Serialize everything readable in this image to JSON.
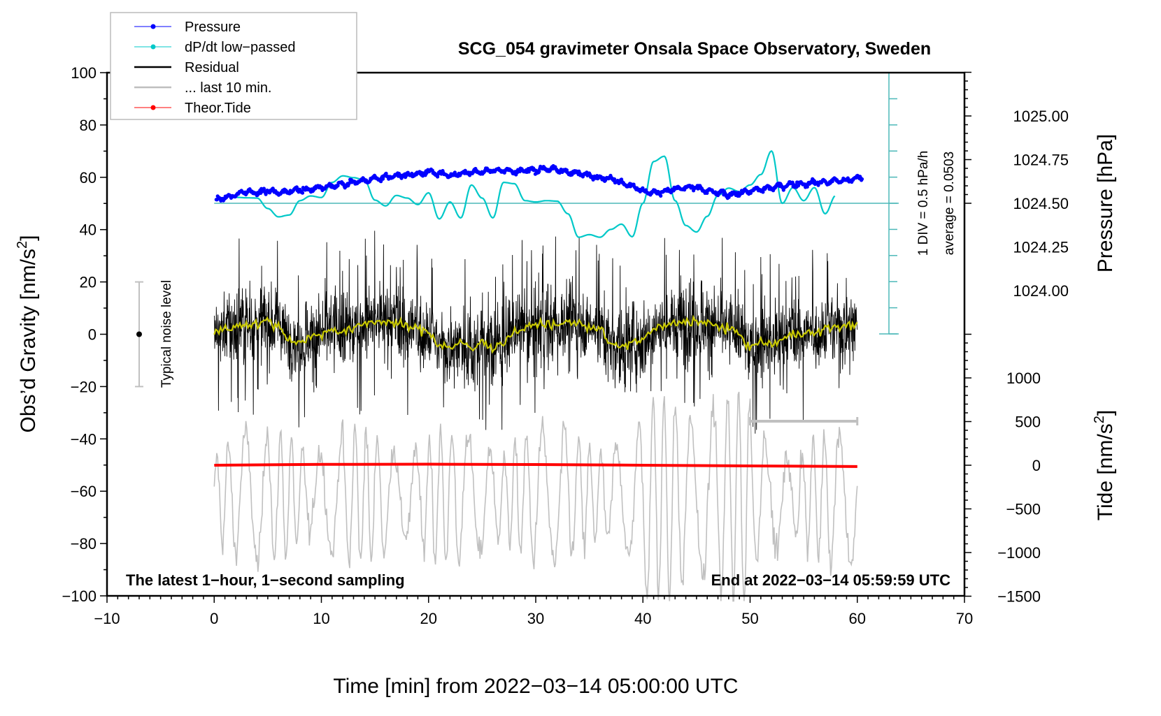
{
  "chart_data": {
    "type": "line",
    "title": "SCG_054 gravimeter Onsala Space Observatory, Sweden",
    "xlabel": "Time [min] from 2022−03−14 05:00:00 UTC",
    "ylabel_left": "Obs’d Gravity [nm/s²]",
    "ylabel_left_base": "Obs’d Gravity [nm/s",
    "ylabel_left_sup": "2",
    "ylabel_left_end": "]",
    "ylabel_right_pressure": "Pressure [hPa]",
    "ylabel_right_tide_base": "Tide [nm/s",
    "ylabel_right_tide_sup": "2",
    "ylabel_right_tide_end": "]",
    "xlim": [
      -10,
      70
    ],
    "ylim_left": [
      -100,
      100
    ],
    "ylim_pressure": [
      1023.75,
      1025.25
    ],
    "ylim_tide": [
      -1500,
      1500
    ],
    "x_ticks": [
      "−10",
      "0",
      "10",
      "20",
      "30",
      "40",
      "50",
      "60",
      "70"
    ],
    "x_tick_values": [
      -10,
      0,
      10,
      20,
      30,
      40,
      50,
      60,
      70
    ],
    "y_left_ticks": [
      "100",
      "80",
      "60",
      "40",
      "20",
      "0",
      "−20",
      "−40",
      "−60",
      "−80",
      "−100"
    ],
    "y_left_tick_values": [
      100,
      80,
      60,
      40,
      20,
      0,
      -20,
      -40,
      -60,
      -80,
      -100
    ],
    "pressure_ticks": [
      "1025.00",
      "1024.75",
      "1024.50",
      "1024.25",
      "1024.00"
    ],
    "pressure_tick_values": [
      1025.0,
      1024.75,
      1024.5,
      1024.25,
      1024.0
    ],
    "tide_ticks": [
      "1000",
      "500",
      "0",
      "−500",
      "−1000",
      "−1500"
    ],
    "tide_tick_values": [
      1000,
      500,
      0,
      -500,
      -1000,
      -1500
    ],
    "grid": false,
    "legend_position": "top-left",
    "legend": [
      {
        "label": "Pressure",
        "color": "#0000ff",
        "marker": "dot"
      },
      {
        "label": "dP/dt low−passed",
        "color": "#00c8c8",
        "marker": "dot"
      },
      {
        "label": "Residual",
        "color": "#000000",
        "marker": "line"
      },
      {
        "label": "... last 10 min.",
        "color": "#bebebe",
        "marker": "line"
      },
      {
        "label": "Theor.Tide",
        "color": "#ff0000",
        "marker": "dot"
      }
    ],
    "annotations": {
      "sampling_note": "The latest 1−hour, 1−second sampling",
      "end_note": "End at 2022−03−14 05:59:59 UTC",
      "noise_label": "Typical noise level",
      "noise_range": [
        -20,
        20
      ],
      "noise_x": -7,
      "dpdt_scale": "1 DIV = 0.5 hPa/h",
      "dpdt_average": "average = 0.0503",
      "last10_bracket_minutes": [
        50,
        60
      ]
    },
    "series": [
      {
        "name": "Pressure",
        "axis": "pressure",
        "color": "#0000ff",
        "x": [
          0.2,
          1,
          2,
          3,
          4,
          5,
          6,
          7,
          8,
          9,
          10,
          11,
          12,
          13,
          14,
          15,
          16,
          17,
          18,
          19,
          20,
          21,
          22,
          23,
          24,
          25,
          26,
          27,
          28,
          29,
          30,
          31,
          32,
          33,
          34,
          35,
          36,
          37,
          38,
          39,
          40,
          41,
          42,
          43,
          44,
          45,
          46,
          47,
          48,
          49,
          50,
          51,
          52,
          53,
          54,
          55,
          56,
          57,
          58,
          59,
          60.5
        ],
        "values": [
          1024.52,
          1024.53,
          1024.55,
          1024.57,
          1024.56,
          1024.57,
          1024.56,
          1024.57,
          1024.58,
          1024.58,
          1024.59,
          1024.6,
          1024.61,
          1024.62,
          1024.63,
          1024.64,
          1024.65,
          1024.66,
          1024.66,
          1024.67,
          1024.68,
          1024.67,
          1024.66,
          1024.67,
          1024.68,
          1024.68,
          1024.69,
          1024.69,
          1024.68,
          1024.69,
          1024.69,
          1024.7,
          1024.69,
          1024.68,
          1024.67,
          1024.66,
          1024.65,
          1024.64,
          1024.62,
          1024.6,
          1024.57,
          1024.56,
          1024.57,
          1024.58,
          1024.59,
          1024.59,
          1024.57,
          1024.56,
          1024.55,
          1024.56,
          1024.57,
          1024.58,
          1024.59,
          1024.6,
          1024.61,
          1024.61,
          1024.62,
          1024.62,
          1024.63,
          1024.63,
          1024.65
        ]
      },
      {
        "name": "dP/dt low-passed",
        "axis": "dpdt_div",
        "color": "#00c8c8",
        "x": [
          2,
          3,
          4,
          5,
          6,
          7,
          8,
          9,
          10,
          11,
          12,
          13,
          14,
          15,
          16,
          17,
          18,
          19,
          20,
          21,
          22,
          23,
          24,
          25,
          26,
          27,
          28,
          29,
          30,
          31,
          32,
          33,
          34,
          35,
          36,
          37,
          38,
          39,
          40,
          41,
          42,
          43,
          44,
          45,
          46,
          47,
          48,
          49,
          50,
          51,
          52,
          53,
          54,
          55,
          56,
          57,
          58
        ],
        "values": [
          0.23,
          0.21,
          0.2,
          -0.2,
          -0.52,
          -0.45,
          0.1,
          0.28,
          0.22,
          0.8,
          1.05,
          0.98,
          0.9,
          0.12,
          -0.1,
          0.3,
          0.2,
          -0.05,
          0.4,
          -0.6,
          0.05,
          -0.56,
          0.7,
          0.2,
          -0.56,
          0.8,
          0.75,
          0.1,
          0.05,
          0.1,
          0.08,
          -0.4,
          -1.3,
          -1.2,
          -1.3,
          -1.0,
          -0.8,
          -1.28,
          0.0,
          1.6,
          1.8,
          0.1,
          -0.85,
          -1.1,
          -0.5,
          0.3,
          0.58,
          0.45,
          0.7,
          1.1,
          2.0,
          0.0,
          0.6,
          0.1,
          0.6,
          -0.4,
          0.3
        ]
      },
      {
        "name": "Residual smoothed",
        "axis": "left",
        "color": "#c8c800",
        "x": [
          0,
          1,
          2,
          3,
          4,
          5,
          6,
          7,
          8,
          9,
          10,
          11,
          12,
          13,
          14,
          15,
          16,
          17,
          18,
          19,
          20,
          21,
          22,
          23,
          24,
          25,
          26,
          27,
          28,
          29,
          30,
          31,
          32,
          33,
          34,
          35,
          36,
          37,
          38,
          39,
          40,
          41,
          42,
          43,
          44,
          45,
          46,
          47,
          48,
          49,
          50,
          51,
          52,
          53,
          54,
          55,
          56,
          57,
          58,
          59,
          60
        ],
        "values": [
          1,
          2,
          3,
          4,
          4,
          5,
          3,
          -2,
          -3,
          -1,
          0,
          2,
          1,
          2,
          4,
          5,
          5,
          4,
          3,
          2,
          1,
          -4,
          -5,
          -3,
          -6,
          -3,
          -5,
          -3,
          1,
          2,
          4,
          4,
          3,
          5,
          4,
          3,
          2,
          -4,
          -5,
          -3,
          -2,
          2,
          3,
          4,
          5,
          5,
          4,
          3,
          2,
          0,
          -5,
          -3,
          -4,
          -2,
          0,
          1,
          0,
          2,
          3,
          3,
          4
        ]
      },
      {
        "name": "Theor.Tide",
        "axis": "tide",
        "color": "#ff0000",
        "x": [
          0,
          10,
          20,
          30,
          40,
          50,
          60
        ],
        "values": [
          0,
          10,
          12,
          8,
          0,
          -8,
          -15
        ]
      }
    ],
    "residual_envelope": {
      "min_approx": -40,
      "max_approx": 37
    },
    "last10min_trace_range_approx": [
      -100,
      -25
    ]
  }
}
